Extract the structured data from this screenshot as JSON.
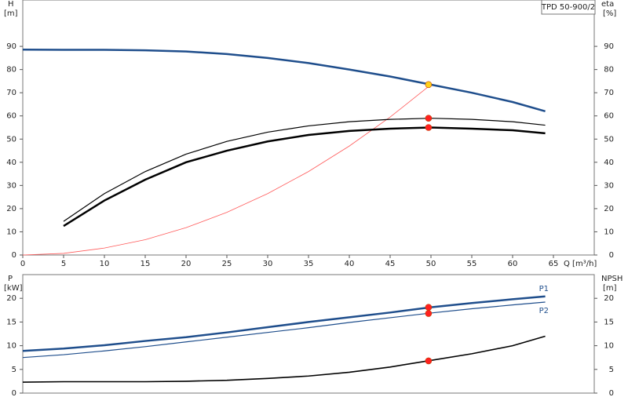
{
  "chart_data": [
    {
      "type": "line",
      "title": "TPD 50-900/2",
      "y_label": "H",
      "y_unit": "[m]",
      "y2_label": "eta",
      "y2_unit": "[%]",
      "x_label": "Q [m³/h]",
      "xlim": [
        0,
        70
      ],
      "xticks": [
        0,
        5,
        10,
        15,
        20,
        25,
        30,
        35,
        40,
        45,
        50,
        55,
        60,
        65
      ],
      "ylim": [
        0,
        110
      ],
      "yticks": [
        0,
        10,
        20,
        30,
        40,
        50,
        60,
        70,
        80,
        90
      ],
      "y2lim": [
        0,
        110
      ],
      "y2ticks": [
        0,
        10,
        20,
        30,
        40,
        50,
        60,
        70,
        80,
        90
      ],
      "series": [
        {
          "color": "#ff5a5a",
          "width": 0.8,
          "x": [
            0,
            5,
            10,
            15,
            20,
            25,
            30,
            35,
            40,
            45,
            50
          ],
          "values": [
            0,
            0.7,
            3,
            6.6,
            11.8,
            18.4,
            26.5,
            36,
            47,
            59.5,
            73.5
          ]
        },
        {
          "color": "#1f4e8c",
          "width": 2.5,
          "x": [
            0,
            5,
            10,
            15,
            20,
            25,
            30,
            35,
            40,
            45,
            50,
            55,
            60,
            64
          ],
          "values": [
            88.6,
            88.5,
            88.5,
            88.3,
            87.8,
            86.7,
            85,
            82.8,
            80,
            77,
            73.5,
            70,
            66,
            62
          ]
        },
        {
          "color": "#000000",
          "width": 1.2,
          "axis": "y2",
          "x": [
            5,
            10,
            15,
            20,
            25,
            30,
            35,
            40,
            45,
            50,
            55,
            60,
            64
          ],
          "values": [
            14.5,
            26.5,
            36,
            43.5,
            49,
            53,
            55.7,
            57.5,
            58.5,
            59,
            58.5,
            57.5,
            56
          ]
        },
        {
          "color": "#000000",
          "width": 2.5,
          "axis": "y2",
          "x": [
            5,
            10,
            15,
            20,
            25,
            30,
            35,
            40,
            45,
            50,
            55,
            60,
            64
          ],
          "values": [
            12.5,
            23.5,
            32.5,
            40,
            45,
            49,
            51.8,
            53.5,
            54.5,
            55,
            54.5,
            53.8,
            52.5
          ]
        },
        {
          "marker": true,
          "color": "#ff2020",
          "axis": "y2",
          "x": [
            49.7,
            49.7
          ],
          "values": [
            59,
            55
          ]
        },
        {
          "marker": true,
          "color": "#ffd21a",
          "x": [
            49.7
          ],
          "values": [
            73.5
          ]
        }
      ]
    },
    {
      "type": "line",
      "y_label": "P",
      "y_unit": "[kW]",
      "y2_label": "NPSH",
      "y2_unit": "[m]",
      "xlim": [
        0,
        70
      ],
      "ylim": [
        0,
        25
      ],
      "yticks": [
        0,
        5,
        10,
        15,
        20
      ],
      "y2lim": [
        0,
        25
      ],
      "y2ticks": [
        0,
        5,
        10,
        15,
        20
      ],
      "series": [
        {
          "name": "P1",
          "color": "#1f4e8c",
          "width": 2.5,
          "x": [
            0,
            5,
            10,
            15,
            20,
            25,
            30,
            35,
            40,
            45,
            50,
            55,
            60,
            64
          ],
          "values": [
            8.9,
            9.4,
            10.1,
            11,
            11.8,
            12.8,
            13.9,
            15,
            16,
            17,
            18.1,
            19,
            19.8,
            20.4
          ]
        },
        {
          "name": "P2",
          "color": "#1f4e8c",
          "width": 1.2,
          "x": [
            0,
            5,
            10,
            15,
            20,
            25,
            30,
            35,
            40,
            45,
            50,
            55,
            60,
            64
          ],
          "values": [
            7.5,
            8.1,
            8.9,
            9.8,
            10.8,
            11.8,
            12.8,
            13.8,
            14.9,
            15.9,
            16.9,
            17.8,
            18.6,
            19.2
          ]
        },
        {
          "color": "#000000",
          "width": 1.6,
          "axis": "y2",
          "x": [
            0,
            5,
            10,
            15,
            20,
            25,
            30,
            35,
            40,
            45,
            50,
            55,
            60,
            64
          ],
          "values": [
            2.3,
            2.4,
            2.4,
            2.4,
            2.5,
            2.7,
            3.1,
            3.6,
            4.4,
            5.5,
            6.9,
            8.3,
            10,
            12
          ]
        },
        {
          "marker": true,
          "color": "#ff2020",
          "x": [
            49.7,
            49.7
          ],
          "values": [
            18.1,
            16.8
          ]
        },
        {
          "marker": true,
          "color": "#ff2020",
          "axis": "y2",
          "x": [
            49.7
          ],
          "values": [
            6.8
          ]
        }
      ]
    }
  ]
}
